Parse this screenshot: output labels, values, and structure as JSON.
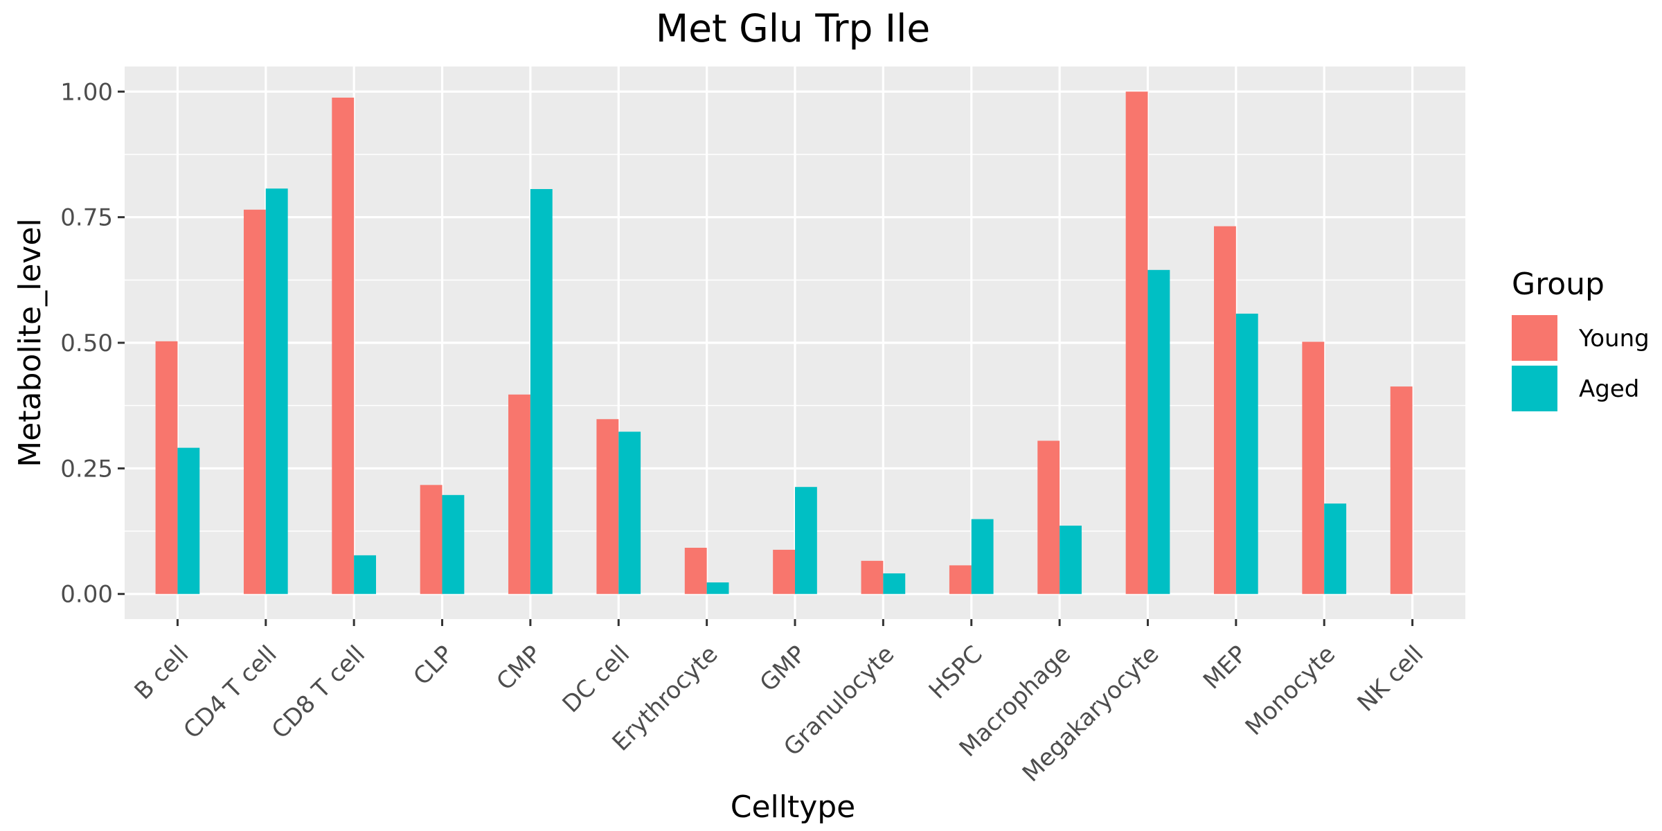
{
  "chart_data": {
    "type": "bar",
    "title": "Met Glu Trp Ile",
    "xlabel": "Celltype",
    "ylabel": "Metabolite_level",
    "ylim": [
      -0.05,
      1.05
    ],
    "yticks": [
      0.0,
      0.25,
      0.5,
      0.75,
      1.0
    ],
    "ytick_labels": [
      "0.00",
      "0.25",
      "0.50",
      "0.75",
      "1.00"
    ],
    "grid": true,
    "legend_position": "right",
    "legend_title": "Group",
    "categories": [
      "B cell",
      "CD4 T cell",
      "CD8 T cell",
      "CLP",
      "CMP",
      "DC cell",
      "Erythrocyte",
      "GMP",
      "Granulocyte",
      "HSPC",
      "Macrophage",
      "Megakaryocyte",
      "MEP",
      "Monocyte",
      "NK cell"
    ],
    "series": [
      {
        "name": "Young",
        "color": "#F8766D",
        "values": [
          0.503,
          0.765,
          0.988,
          0.217,
          0.397,
          0.348,
          0.092,
          0.088,
          0.066,
          0.057,
          0.305,
          1.0,
          0.732,
          0.502,
          0.413
        ]
      },
      {
        "name": "Aged",
        "color": "#00BFC4",
        "values": [
          0.291,
          0.807,
          0.077,
          0.197,
          0.806,
          0.323,
          0.023,
          0.213,
          0.041,
          0.149,
          0.136,
          0.645,
          0.558,
          0.18,
          null
        ]
      }
    ]
  }
}
